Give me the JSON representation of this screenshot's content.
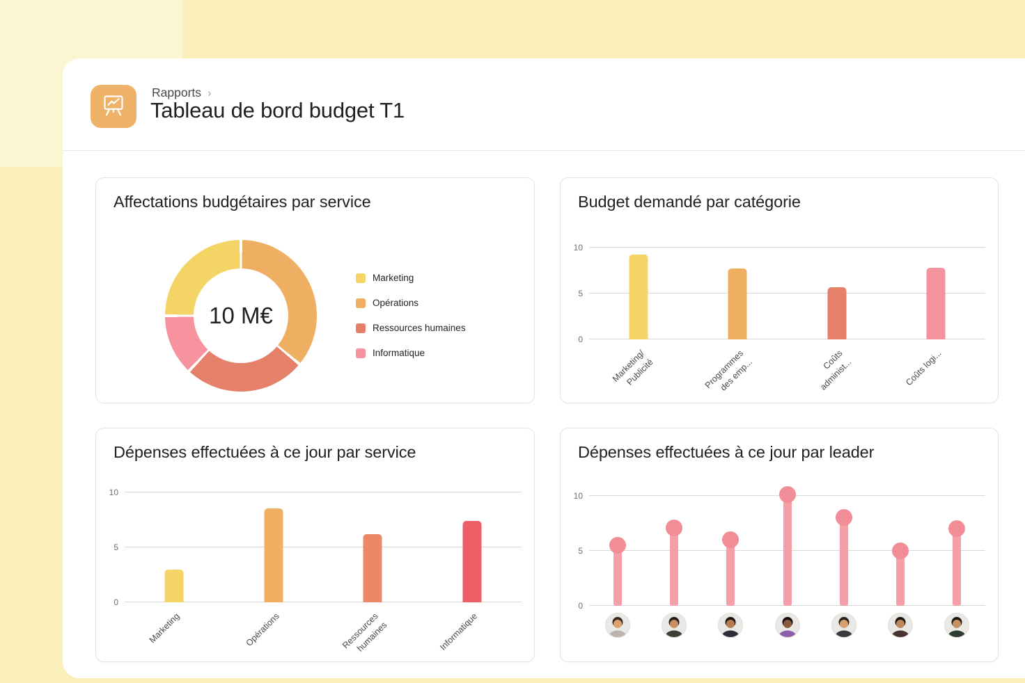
{
  "colors": {
    "page_bg": "#FAEFBB",
    "page_bg_accent": "#FBF5D2",
    "panel_bg": "#FFFFFF",
    "icon_bg": "#EFB269",
    "gridline": "#D9D8D6",
    "tick_text": "#6D6E6F",
    "title_text": "#1E1F21"
  },
  "header": {
    "breadcrumb": "Rapports",
    "breadcrumb_separator": "›",
    "title": "Tableau de bord budget T1"
  },
  "charts": {
    "allocations": {
      "title": "Affectations budgétaires par service",
      "center_label": "10 M€",
      "chart_data": {
        "type": "pie",
        "donut": true,
        "labels": [
          "Marketing",
          "Opérations",
          "Ressources humaines",
          "Informatique"
        ],
        "values_pct": [
          25,
          36,
          26,
          13
        ],
        "values_meur": [
          2.5,
          3.6,
          2.6,
          1.3
        ],
        "total_label": "10 M€",
        "colors": [
          "#F3D464",
          "#EFAF62",
          "#E5806A",
          "#F6939E"
        ],
        "draw_order_clockwise_from_top": [
          1,
          2,
          3,
          0
        ],
        "legend_position": "right"
      }
    },
    "budget_by_category": {
      "title": "Budget demandé par catégorie",
      "chart_data": {
        "type": "bar",
        "categories": [
          "Marketing/\nPublicité",
          "Programmes\ndes emp...",
          "Coûts\nadminist...",
          "Coûts logi..."
        ],
        "values": [
          9.2,
          7.7,
          5.7,
          7.8
        ],
        "bar_colors": [
          "#F3D464",
          "#EFAF62",
          "#E5806A",
          "#F4929D"
        ],
        "yticks": [
          0,
          5,
          10
        ],
        "ylim": [
          0,
          11.5
        ],
        "grid": true
      }
    },
    "spend_by_service": {
      "title": "Dépenses effectuées à ce jour par service",
      "chart_data": {
        "type": "bar",
        "categories": [
          "Marketing",
          "Opérations",
          "Ressources\nhumaines",
          "Informatique"
        ],
        "values": [
          3.0,
          8.5,
          6.2,
          7.4
        ],
        "bar_colors": [
          "#F3D464",
          "#F0AF63",
          "#EC8768",
          "#EC5F66"
        ],
        "yticks": [
          0,
          5,
          10
        ],
        "ylim": [
          0,
          11.5
        ],
        "grid": true
      }
    },
    "spend_by_leader": {
      "title": "Dépenses effectuées à ce jour par leader",
      "chart_data": {
        "type": "lollipop",
        "x_axis": "avatars",
        "values": [
          5.5,
          7.1,
          6.0,
          10.1,
          8.0,
          5.0,
          7.0
        ],
        "stem_color": "#F5A0A8",
        "dot_color": "#F18D97",
        "yticks": [
          0,
          5,
          10
        ],
        "ylim": [
          0,
          11.5
        ],
        "grid": true
      },
      "avatars": [
        {
          "icon": "avatar-man-icon",
          "skin": "#D9A26F",
          "hair": "#3A2B1F",
          "shirt": "#BCB4AC"
        },
        {
          "icon": "avatar-man-icon",
          "skin": "#C88F63",
          "hair": "#241D17",
          "shirt": "#3C4034"
        },
        {
          "icon": "avatar-woman-icon",
          "skin": "#B97B52",
          "hair": "#1C1715",
          "shirt": "#2E2C34"
        },
        {
          "icon": "avatar-woman-icon",
          "skin": "#8A5A3B",
          "hair": "#15110F",
          "shirt": "#8E5FA8"
        },
        {
          "icon": "avatar-woman-icon",
          "skin": "#D8A06E",
          "hair": "#2B211B",
          "shirt": "#3A3A40"
        },
        {
          "icon": "avatar-woman-icon",
          "skin": "#C08758",
          "hair": "#1B1613",
          "shirt": "#46342E"
        },
        {
          "icon": "avatar-man-icon",
          "skin": "#C79166",
          "hair": "#201913",
          "shirt": "#2F3B2F"
        }
      ]
    }
  }
}
